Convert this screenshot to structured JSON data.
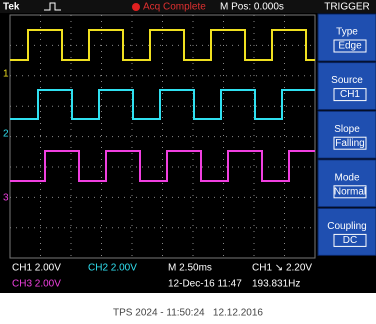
{
  "header": {
    "brand": "Tek",
    "status": "Acq Complete",
    "position": "M Pos: 0.000s",
    "menu_title": "TRIGGER"
  },
  "menu": [
    {
      "label": "Type",
      "value": "Edge"
    },
    {
      "label": "Source",
      "value": "CH1"
    },
    {
      "label": "Slope",
      "value": "Falling"
    },
    {
      "label": "Mode",
      "value": "Normal"
    },
    {
      "label": "Coupling",
      "value": "DC"
    }
  ],
  "channel_markers": [
    "1",
    "2",
    "3"
  ],
  "status": {
    "ch1": "CH1  2.00V",
    "ch2": "CH2  2.00V",
    "timebase": "M 2.50ms",
    "trigger": "CH1 ↘ 2.20V",
    "ch3": "CH3  2.00V",
    "datetime": "12-Dec-16 11:47",
    "frequency": "193.831Hz"
  },
  "caption": "TPS 2024 - 11:50:24   12.12.2016"
}
